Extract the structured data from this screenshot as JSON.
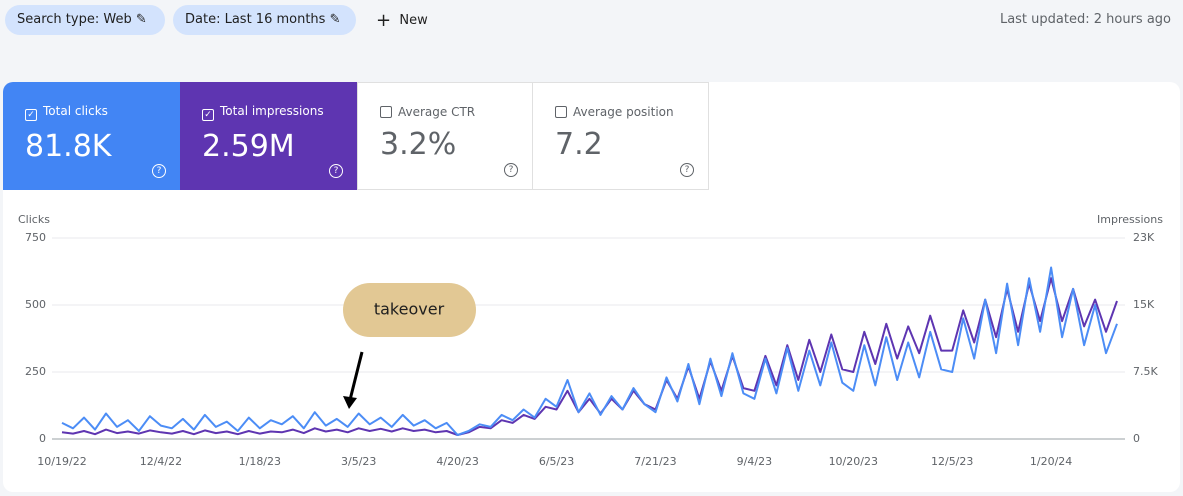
{
  "toolbar": {
    "chips": [
      "Search type: Web",
      "Date: Last 16 months"
    ],
    "new": "New",
    "updated": "Last updated: 2 hours ago"
  },
  "metrics": [
    {
      "label": "Total clicks",
      "value": "81.8K"
    },
    {
      "label": "Total impressions",
      "value": "2.59M"
    },
    {
      "label": "Average CTR",
      "value": "3.2%"
    },
    {
      "label": "Average position",
      "value": "7.2"
    }
  ],
  "chart_data": {
    "type": "line",
    "ylabel": "Clicks",
    "y2label": "Impressions",
    "categories": [
      "10/19/22",
      null,
      null,
      null,
      null,
      null,
      null,
      null,
      null,
      "12/4/22",
      null,
      null,
      null,
      null,
      null,
      null,
      null,
      null,
      "1/18/23",
      null,
      null,
      null,
      null,
      null,
      null,
      null,
      null,
      "3/5/23",
      null,
      null,
      null,
      null,
      null,
      null,
      null,
      null,
      "4/20/23",
      null,
      null,
      null,
      null,
      null,
      null,
      null,
      null,
      "6/5/23",
      null,
      null,
      null,
      null,
      null,
      null,
      null,
      null,
      "7/21/23",
      null,
      null,
      null,
      null,
      null,
      null,
      null,
      null,
      "9/4/23",
      null,
      null,
      null,
      null,
      null,
      null,
      null,
      null,
      "10/20/23",
      null,
      null,
      null,
      null,
      null,
      null,
      null,
      null,
      "12/5/23",
      null,
      null,
      null,
      null,
      null,
      null,
      null,
      null,
      "1/20/24",
      null,
      null,
      null,
      null,
      null,
      null
    ],
    "ylim": [
      0,
      750
    ],
    "yticks": [
      0,
      250,
      500,
      750
    ],
    "y2lim": [
      0,
      22500
    ],
    "y2ticks": [
      0,
      {
        "value": 7500,
        "label": "7.5K"
      },
      {
        "value": 15000,
        "label": "15K"
      },
      {
        "value": 22500,
        "label": "23K"
      }
    ],
    "grid": true,
    "series": [
      {
        "color": "#4c8df6",
        "values": [
          60,
          40,
          80,
          35,
          95,
          45,
          70,
          30,
          85,
          50,
          40,
          75,
          35,
          90,
          45,
          65,
          30,
          80,
          40,
          70,
          55,
          85,
          40,
          100,
          50,
          75,
          45,
          95,
          55,
          80,
          45,
          90,
          50,
          70,
          40,
          60,
          15,
          30,
          55,
          45,
          90,
          70,
          110,
          80,
          150,
          120,
          220,
          100,
          170,
          90,
          160,
          110,
          190,
          130,
          100,
          230,
          140,
          280,
          130,
          300,
          160,
          320,
          170,
          150,
          300,
          170,
          340,
          180,
          330,
          200,
          360,
          210,
          180,
          350,
          200,
          380,
          220,
          360,
          230,
          400,
          260,
          250,
          450,
          300,
          520,
          320,
          580,
          350,
          600,
          400,
          640,
          380,
          560,
          350,
          500,
          320,
          430
        ]
      },
      {
        "color": "#5e35b1",
        "axis": "y2",
        "values": [
          750,
          600,
          900,
          540,
          1050,
          660,
          840,
          600,
          960,
          750,
          600,
          900,
          540,
          960,
          660,
          840,
          540,
          900,
          600,
          840,
          750,
          1050,
          660,
          1200,
          840,
          1050,
          750,
          1200,
          900,
          1140,
          840,
          1200,
          900,
          1050,
          750,
          900,
          450,
          750,
          1350,
          1200,
          2100,
          1800,
          2700,
          2250,
          3600,
          3300,
          5400,
          3000,
          4500,
          2850,
          4500,
          3300,
          5400,
          3900,
          3300,
          6600,
          4500,
          8100,
          4500,
          8700,
          5400,
          9300,
          5700,
          5400,
          9300,
          6000,
          10500,
          6600,
          11100,
          7500,
          11700,
          7800,
          7500,
          12000,
          8400,
          12900,
          9000,
          12600,
          9600,
          13800,
          9900,
          9900,
          14400,
          10800,
          15600,
          11400,
          16800,
          12000,
          17400,
          13200,
          18000,
          13200,
          16800,
          12600,
          15600,
          12000,
          15450
        ]
      }
    ],
    "annotation": "takeover"
  }
}
